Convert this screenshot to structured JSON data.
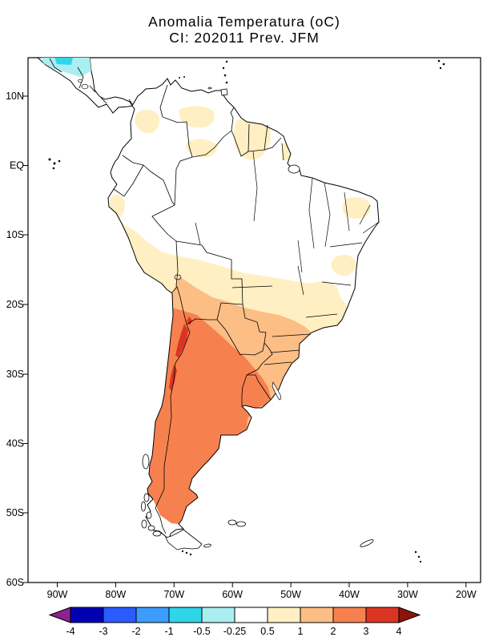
{
  "titles": {
    "line1": "Anomalia Temperatura (oC)",
    "line2": "CI: 202011 Prev. JFM"
  },
  "axes": {
    "lat_labels": [
      "10N",
      "EQ",
      "10S",
      "20S",
      "30S",
      "40S",
      "50S",
      "60S"
    ],
    "lon_labels": [
      "90W",
      "80W",
      "70W",
      "60W",
      "50W",
      "40W",
      "30W",
      "20W"
    ]
  },
  "palette": {
    "navy": "#0000B3",
    "blue": "#2A5CFF",
    "light_blue": "#3C9DFF",
    "cyan": "#30D5E8",
    "pale_cyan": "#AAEEF0",
    "white": "#FFFFFF",
    "cream": "#FFEFC2",
    "light_orange": "#FCBE85",
    "salmon": "#F6814F",
    "red": "#DC3423",
    "arrow_left": "#8B2290",
    "arrow_right": "#8B1508"
  },
  "colorbar": {
    "labels": [
      "-4",
      "-3",
      "-2",
      "-1",
      "-0.5",
      "-0.25",
      "0.5",
      "1",
      "2",
      "3",
      "4"
    ],
    "segment_colors": [
      "#0000B3",
      "#2A5CFF",
      "#3C9DFF",
      "#30D5E8",
      "#AAEEF0",
      "#FFFFFF",
      "#FFEFC2",
      "#FCBE85",
      "#F6814F",
      "#DC3423"
    ],
    "arrow_left_color": "#8B2290",
    "arrow_right_color": "#8B1508"
  },
  "chart_data": {
    "type": "heatmap",
    "title": "Anomalia Temperatura (oC)",
    "subtitle": "CI: 202011 Prev. JFM",
    "variable": "temperature anomaly",
    "units": "oC",
    "region": "South America",
    "projection": "lat-lon",
    "x_ticks": [
      "90W",
      "80W",
      "70W",
      "60W",
      "50W",
      "40W",
      "30W",
      "20W"
    ],
    "y_ticks": [
      "10N",
      "EQ",
      "10S",
      "20S",
      "30S",
      "40S",
      "50S",
      "60S"
    ],
    "levels": [
      -4,
      -3,
      -2,
      -1,
      -0.5,
      -0.25,
      0.5,
      1,
      2,
      3,
      4
    ],
    "legend_position": "bottom",
    "grid": false,
    "anomaly_regions": [
      {
        "area": "central Chile, central Argentina, Patagonia",
        "value_range": "2 to 3"
      },
      {
        "area": "Andes along Chile-Argentina border 22S-33S",
        "value_range": "3 to 4"
      },
      {
        "area": "Paraguay, southern Brazil, Uruguay, northern Argentina, Bolivia lowlands",
        "value_range": "1 to 2"
      },
      {
        "area": "Peru coastal strip, Bolivian Altiplano, central-eastern Brazil fringe",
        "value_range": "0.5 to 1"
      },
      {
        "area": "Amazon basin and most of northern South America",
        "value_range": "-0.25 to 0.5"
      },
      {
        "area": "Central America (top-left corner of map)",
        "value_range": "-1 to -0.25"
      }
    ]
  }
}
